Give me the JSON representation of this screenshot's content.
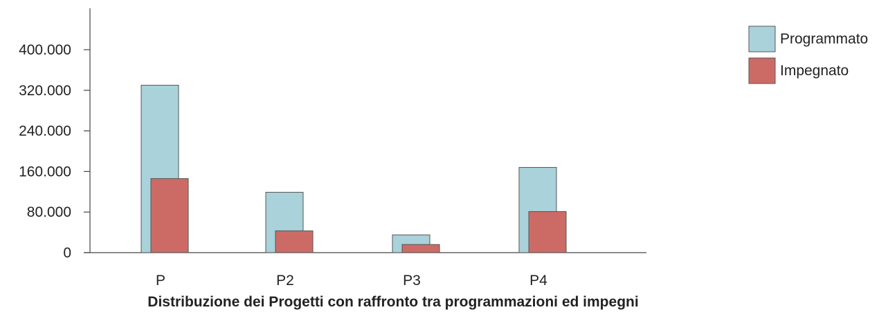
{
  "chart_data": {
    "type": "bar",
    "title": "Distribuzione dei Progetti con raffronto tra programmazioni ed impegni",
    "categories": [
      "P",
      "P2",
      "P3",
      "P4"
    ],
    "series": [
      {
        "name": "Programmato",
        "color": "#a9d2da",
        "values": [
          330000,
          119000,
          35000,
          168000
        ]
      },
      {
        "name": "Impegnato",
        "color": "#cc6b66",
        "values": [
          146000,
          43000,
          16000,
          81000
        ]
      }
    ],
    "yticks": [
      0,
      80000,
      160000,
      240000,
      320000,
      400000
    ],
    "ytick_labels": [
      "0",
      "80.000",
      "160.000",
      "240.000",
      "320.000",
      "400.000"
    ],
    "ylim": [
      0,
      400000
    ],
    "grid": false,
    "legend_position": "top-right"
  }
}
